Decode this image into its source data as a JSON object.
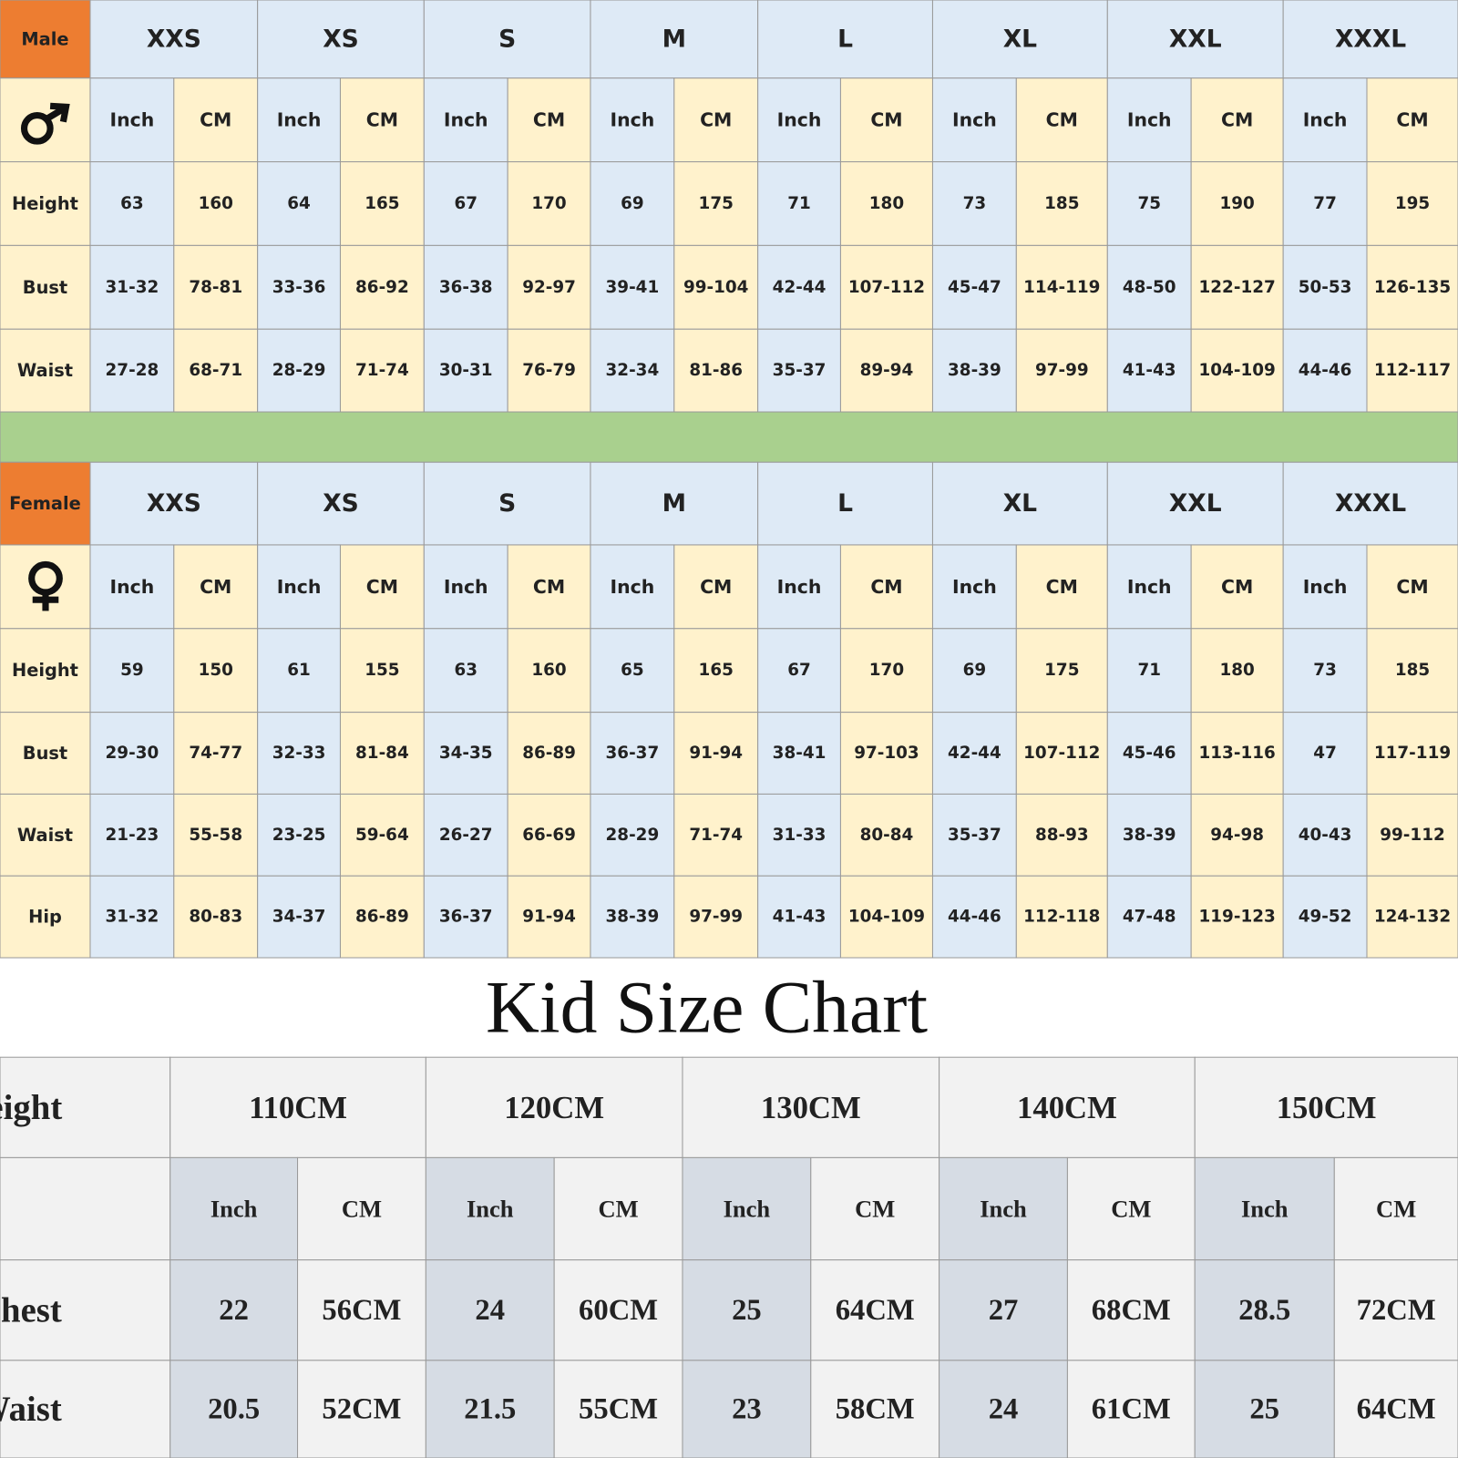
{
  "male": {
    "label": "Male",
    "sizes": [
      "XXS",
      "XS",
      "S",
      "M",
      "L",
      "XL",
      "XXL",
      "XXXL"
    ],
    "units": [
      "Inch",
      "CM",
      "Inch",
      "CM",
      "Inch",
      "CM",
      "Inch",
      "CM",
      "Inch",
      "CM",
      "Inch",
      "CM",
      "Inch",
      "CM",
      "Inch",
      "CM"
    ],
    "rows": [
      {
        "label": "Height",
        "values": [
          "63",
          "160",
          "64",
          "165",
          "67",
          "170",
          "69",
          "175",
          "71",
          "180",
          "73",
          "185",
          "75",
          "190",
          "77",
          "195"
        ]
      },
      {
        "label": "Bust",
        "values": [
          "31-32",
          "78-81",
          "33-36",
          "86-92",
          "36-38",
          "92-97",
          "39-41",
          "99-104",
          "42-44",
          "107-112",
          "45-47",
          "114-119",
          "48-50",
          "122-127",
          "50-53",
          "126-135"
        ]
      },
      {
        "label": "Waist",
        "values": [
          "27-28",
          "68-71",
          "28-29",
          "71-74",
          "30-31",
          "76-79",
          "32-34",
          "81-86",
          "35-37",
          "89-94",
          "38-39",
          "97-99",
          "41-43",
          "104-109",
          "44-46",
          "112-117"
        ]
      }
    ]
  },
  "female": {
    "label": "Female",
    "sizes": [
      "XXS",
      "XS",
      "S",
      "M",
      "L",
      "XL",
      "XXL",
      "XXXL"
    ],
    "units": [
      "Inch",
      "CM",
      "Inch",
      "CM",
      "Inch",
      "CM",
      "Inch",
      "CM",
      "Inch",
      "CM",
      "Inch",
      "CM",
      "Inch",
      "CM",
      "Inch",
      "CM"
    ],
    "rows": [
      {
        "label": "Height",
        "values": [
          "59",
          "150",
          "61",
          "155",
          "63",
          "160",
          "65",
          "165",
          "67",
          "170",
          "69",
          "175",
          "71",
          "180",
          "73",
          "185"
        ]
      },
      {
        "label": "Bust",
        "values": [
          "29-30",
          "74-77",
          "32-33",
          "81-84",
          "34-35",
          "86-89",
          "36-37",
          "91-94",
          "38-41",
          "97-103",
          "42-44",
          "107-112",
          "45-46",
          "113-116",
          "47",
          "117-119"
        ]
      },
      {
        "label": "Waist",
        "values": [
          "21-23",
          "55-58",
          "23-25",
          "59-64",
          "26-27",
          "66-69",
          "28-29",
          "71-74",
          "31-33",
          "80-84",
          "35-37",
          "88-93",
          "38-39",
          "94-98",
          "40-43",
          "99-112"
        ]
      },
      {
        "label": "Hip",
        "values": [
          "31-32",
          "80-83",
          "34-37",
          "86-89",
          "36-37",
          "91-94",
          "38-39",
          "97-99",
          "41-43",
          "104-109",
          "44-46",
          "112-118",
          "47-48",
          "119-123",
          "49-52",
          "124-132"
        ]
      }
    ]
  },
  "kid": {
    "title": "Kid Size Chart",
    "header": "Height",
    "sizes": [
      "110CM",
      "120CM",
      "130CM",
      "140CM",
      "150CM"
    ],
    "units": [
      "Inch",
      "CM",
      "Inch",
      "CM",
      "Inch",
      "CM",
      "Inch",
      "CM",
      "Inch",
      "CM"
    ],
    "rows": [
      {
        "label": "Chest",
        "values": [
          "22",
          "56CM",
          "24",
          "60CM",
          "25",
          "64CM",
          "27",
          "68CM",
          "28.5",
          "72CM"
        ]
      },
      {
        "label": "Waist",
        "values": [
          "20.5",
          "52CM",
          "21.5",
          "55CM",
          "23",
          "58CM",
          "24",
          "61CM",
          "25",
          "64CM"
        ]
      }
    ]
  }
}
